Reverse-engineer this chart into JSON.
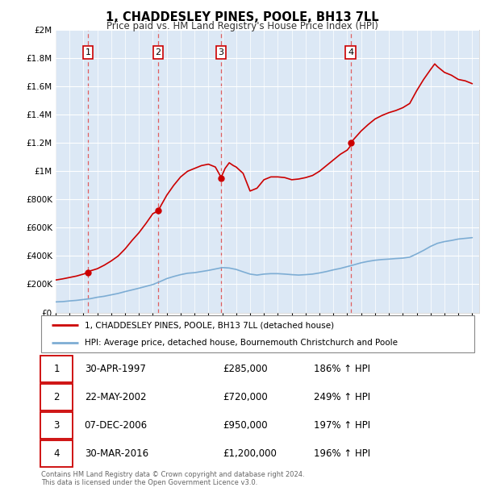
{
  "title": "1, CHADDESLEY PINES, POOLE, BH13 7LL",
  "subtitle": "Price paid vs. HM Land Registry's House Price Index (HPI)",
  "legend_line1": "1, CHADDESLEY PINES, POOLE, BH13 7LL (detached house)",
  "legend_line2": "HPI: Average price, detached house, Bournemouth Christchurch and Poole",
  "footer1": "Contains HM Land Registry data © Crown copyright and database right 2024.",
  "footer2": "This data is licensed under the Open Government Licence v3.0.",
  "sales": [
    {
      "num": 1,
      "date_label": "30-APR-1997",
      "year": 1997.33,
      "price": 285000,
      "hpi_pct": "186% ↑ HPI"
    },
    {
      "num": 2,
      "date_label": "22-MAY-2002",
      "year": 2002.38,
      "price": 720000,
      "hpi_pct": "249% ↑ HPI"
    },
    {
      "num": 3,
      "date_label": "07-DEC-2006",
      "year": 2006.92,
      "price": 950000,
      "hpi_pct": "197% ↑ HPI"
    },
    {
      "num": 4,
      "date_label": "30-MAR-2016",
      "year": 2016.25,
      "price": 1200000,
      "hpi_pct": "196% ↑ HPI"
    }
  ],
  "hpi_color": "#7dadd4",
  "price_color": "#cc0000",
  "vline_color": "#e06060",
  "dot_color": "#cc0000",
  "background_chart": "#dce8f5",
  "ylim": [
    0,
    2000000
  ],
  "yticks": [
    0,
    200000,
    400000,
    600000,
    800000,
    1000000,
    1200000,
    1400000,
    1600000,
    1800000,
    2000000
  ],
  "xlim_start": 1995,
  "xlim_end": 2025.5,
  "years_hpi": [
    1995.0,
    1995.5,
    1996.0,
    1996.5,
    1997.0,
    1997.5,
    1998.0,
    1998.5,
    1999.0,
    1999.5,
    2000.0,
    2000.5,
    2001.0,
    2001.5,
    2002.0,
    2002.5,
    2003.0,
    2003.5,
    2004.0,
    2004.5,
    2005.0,
    2005.5,
    2006.0,
    2006.5,
    2007.0,
    2007.5,
    2008.0,
    2008.5,
    2009.0,
    2009.5,
    2010.0,
    2010.5,
    2011.0,
    2011.5,
    2012.0,
    2012.5,
    2013.0,
    2013.5,
    2014.0,
    2014.5,
    2015.0,
    2015.5,
    2016.0,
    2016.5,
    2017.0,
    2017.5,
    2018.0,
    2018.5,
    2019.0,
    2019.5,
    2020.0,
    2020.5,
    2021.0,
    2021.5,
    2022.0,
    2022.5,
    2023.0,
    2023.5,
    2024.0,
    2024.5,
    2025.0
  ],
  "hpi_values": [
    75000,
    77000,
    82000,
    86000,
    92000,
    98000,
    108000,
    115000,
    125000,
    135000,
    148000,
    160000,
    172000,
    185000,
    198000,
    218000,
    240000,
    255000,
    268000,
    278000,
    282000,
    290000,
    298000,
    308000,
    318000,
    315000,
    305000,
    288000,
    272000,
    265000,
    272000,
    275000,
    275000,
    272000,
    268000,
    265000,
    268000,
    272000,
    280000,
    290000,
    302000,
    312000,
    325000,
    338000,
    352000,
    362000,
    370000,
    375000,
    378000,
    382000,
    385000,
    392000,
    415000,
    440000,
    468000,
    490000,
    502000,
    510000,
    520000,
    525000,
    530000
  ],
  "years_price": [
    1995.0,
    1995.5,
    1996.0,
    1996.5,
    1997.0,
    1997.25,
    1997.33,
    1997.5,
    1998.0,
    1998.5,
    1999.0,
    1999.5,
    2000.0,
    2000.5,
    2001.0,
    2001.5,
    2002.0,
    2002.3,
    2002.38,
    2002.6,
    2003.0,
    2003.5,
    2004.0,
    2004.5,
    2005.0,
    2005.5,
    2006.0,
    2006.5,
    2006.9,
    2006.92,
    2007.0,
    2007.2,
    2007.5,
    2007.8,
    2008.0,
    2008.5,
    2009.0,
    2009.5,
    2010.0,
    2010.5,
    2011.0,
    2011.5,
    2012.0,
    2012.5,
    2013.0,
    2013.5,
    2014.0,
    2014.5,
    2015.0,
    2015.5,
    2016.0,
    2016.2,
    2016.25,
    2016.5,
    2017.0,
    2017.5,
    2018.0,
    2018.5,
    2019.0,
    2019.5,
    2020.0,
    2020.5,
    2021.0,
    2021.5,
    2022.0,
    2022.3,
    2022.5,
    2023.0,
    2023.5,
    2024.0,
    2024.5,
    2025.0
  ],
  "price_values": [
    230000,
    238000,
    248000,
    258000,
    272000,
    280000,
    285000,
    295000,
    310000,
    335000,
    365000,
    400000,
    450000,
    510000,
    565000,
    630000,
    700000,
    715000,
    720000,
    760000,
    830000,
    900000,
    960000,
    1000000,
    1020000,
    1040000,
    1050000,
    1030000,
    960000,
    950000,
    975000,
    1020000,
    1060000,
    1040000,
    1030000,
    985000,
    860000,
    880000,
    940000,
    960000,
    960000,
    955000,
    940000,
    945000,
    955000,
    970000,
    1000000,
    1040000,
    1080000,
    1120000,
    1150000,
    1175000,
    1200000,
    1230000,
    1285000,
    1330000,
    1370000,
    1395000,
    1415000,
    1430000,
    1450000,
    1480000,
    1570000,
    1650000,
    1720000,
    1760000,
    1740000,
    1700000,
    1680000,
    1650000,
    1640000,
    1620000
  ]
}
